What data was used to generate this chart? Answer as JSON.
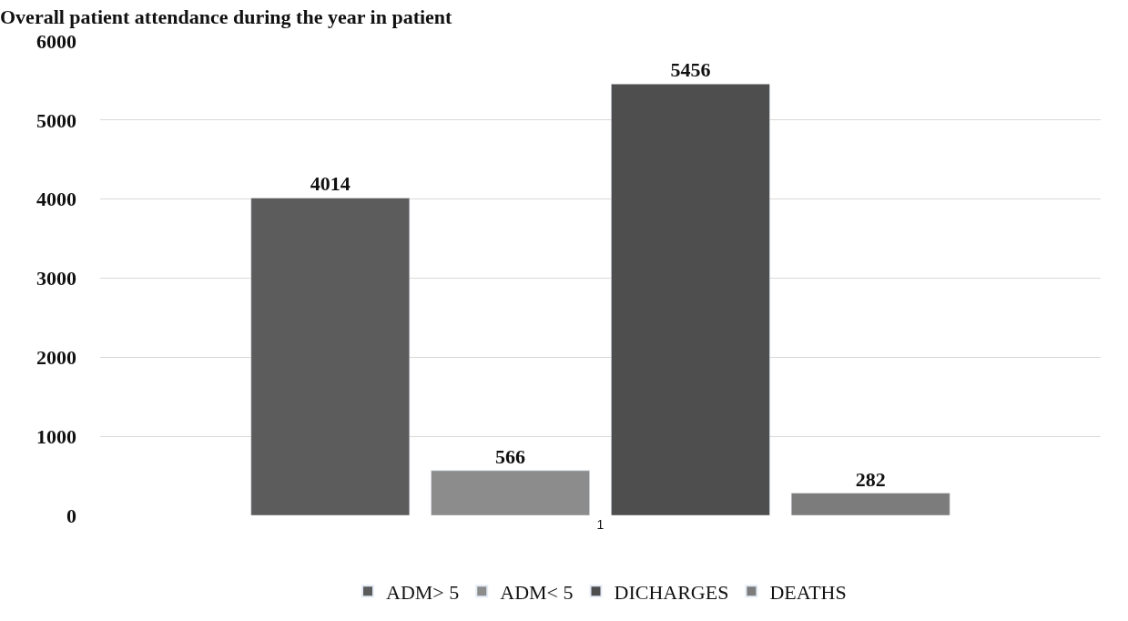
{
  "chart_data": {
    "type": "bar",
    "title": "Overall patient attendance during the year in patient",
    "categories": [
      "1"
    ],
    "series": [
      {
        "name": "ADM> 5",
        "color": "#5c5c5c",
        "values": [
          4014
        ]
      },
      {
        "name": "ADM< 5",
        "color": "#8c8c8c",
        "values": [
          566
        ]
      },
      {
        "name": "DICHARGES",
        "color": "#4e4e4e",
        "values": [
          5456
        ]
      },
      {
        "name": "DEATHS",
        "color": "#7c7c7c",
        "values": [
          282
        ]
      }
    ],
    "ylim": [
      0,
      6000
    ],
    "yticks": [
      0,
      1000,
      2000,
      3000,
      4000,
      5000,
      6000
    ],
    "grid": "y",
    "legend": "bottom",
    "data_labels": true
  }
}
